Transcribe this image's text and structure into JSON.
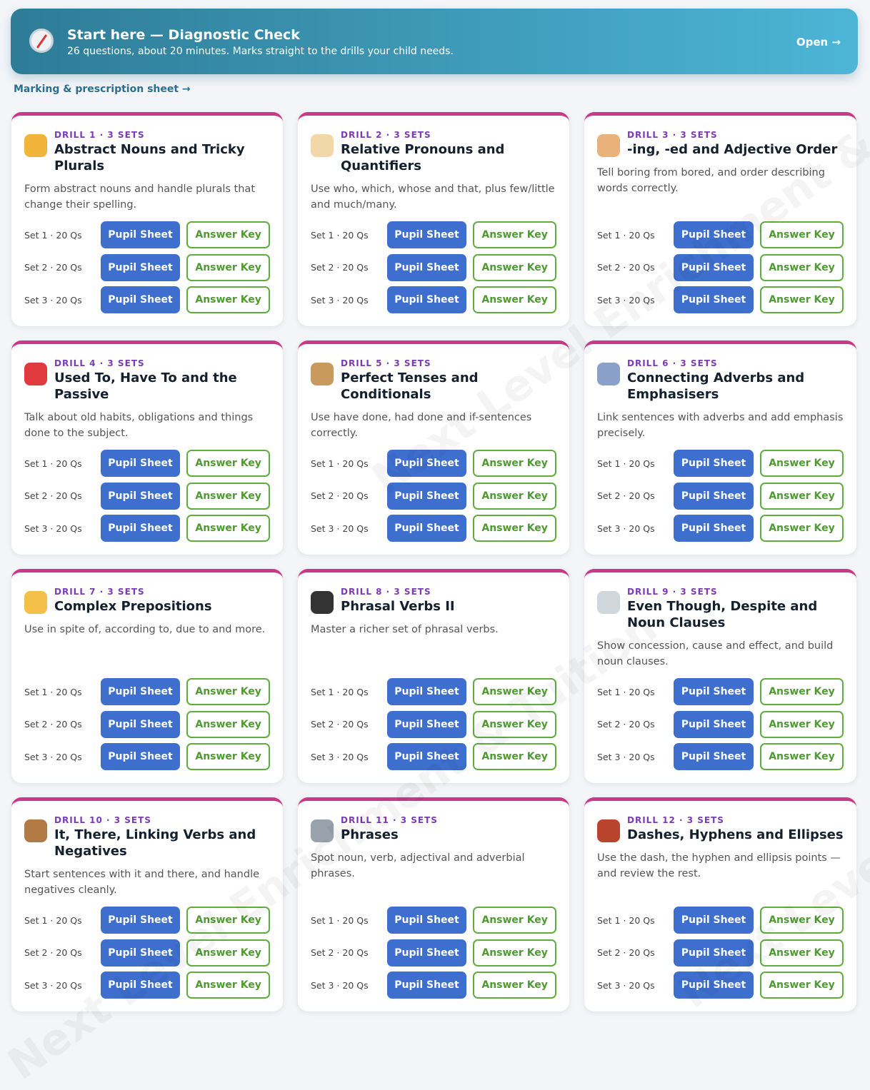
{
  "banner": {
    "title": "Start here — Diagnostic Check",
    "subtitle": "26 questions, about 20 minutes. Marks straight to the drills your child needs.",
    "action": "Open →"
  },
  "link": "Marking & prescription sheet →",
  "watermark": "Next Level Enrichment & Tuition",
  "drills": [
    {
      "label": "DRILL 1 · 3 SETS",
      "title": "Abstract Nouns and Tricky Plurals",
      "description": "Form abstract nouns and handle plurals that change their spelling.",
      "sets": [
        {
          "label": "Set 1 · 20 Qs",
          "pupil": "Pupil Sheet",
          "key": "Answer Key"
        },
        {
          "label": "Set 2 · 20 Qs",
          "pupil": "Pupil Sheet",
          "key": "Answer Key"
        },
        {
          "label": "Set 3 · 20 Qs",
          "pupil": "Pupil Sheet",
          "key": "Answer Key"
        }
      ]
    },
    {
      "label": "DRILL 2 · 3 SETS",
      "title": "Relative Pronouns and Quantifiers",
      "description": "Use who, which, whose and that, plus few/little and much/many.",
      "sets": [
        {
          "label": "Set 1 · 20 Qs",
          "pupil": "Pupil Sheet",
          "key": "Answer Key"
        },
        {
          "label": "Set 2 · 20 Qs",
          "pupil": "Pupil Sheet",
          "key": "Answer Key"
        },
        {
          "label": "Set 3 · 20 Qs",
          "pupil": "Pupil Sheet",
          "key": "Answer Key"
        }
      ]
    },
    {
      "label": "DRILL 3 · 3 SETS",
      "title": "-ing, -ed and Adjective Order",
      "description": "Tell boring from bored, and order describing words correctly.",
      "sets": [
        {
          "label": "Set 1 · 20 Qs",
          "pupil": "Pupil Sheet",
          "key": "Answer Key"
        },
        {
          "label": "Set 2 · 20 Qs",
          "pupil": "Pupil Sheet",
          "key": "Answer Key"
        },
        {
          "label": "Set 3 · 20 Qs",
          "pupil": "Pupil Sheet",
          "key": "Answer Key"
        }
      ]
    },
    {
      "label": "DRILL 4 · 3 SETS",
      "title": "Used To, Have To and the Passive",
      "description": "Talk about old habits, obligations and things done to the subject.",
      "sets": [
        {
          "label": "Set 1 · 20 Qs",
          "pupil": "Pupil Sheet",
          "key": "Answer Key"
        },
        {
          "label": "Set 2 · 20 Qs",
          "pupil": "Pupil Sheet",
          "key": "Answer Key"
        },
        {
          "label": "Set 3 · 20 Qs",
          "pupil": "Pupil Sheet",
          "key": "Answer Key"
        }
      ]
    },
    {
      "label": "DRILL 5 · 3 SETS",
      "title": "Perfect Tenses and Conditionals",
      "description": "Use have done, had done and if-sentences correctly.",
      "sets": [
        {
          "label": "Set 1 · 20 Qs",
          "pupil": "Pupil Sheet",
          "key": "Answer Key"
        },
        {
          "label": "Set 2 · 20 Qs",
          "pupil": "Pupil Sheet",
          "key": "Answer Key"
        },
        {
          "label": "Set 3 · 20 Qs",
          "pupil": "Pupil Sheet",
          "key": "Answer Key"
        }
      ]
    },
    {
      "label": "DRILL 6 · 3 SETS",
      "title": "Connecting Adverbs and Emphasisers",
      "description": "Link sentences with adverbs and add emphasis precisely.",
      "sets": [
        {
          "label": "Set 1 · 20 Qs",
          "pupil": "Pupil Sheet",
          "key": "Answer Key"
        },
        {
          "label": "Set 2 · 20 Qs",
          "pupil": "Pupil Sheet",
          "key": "Answer Key"
        },
        {
          "label": "Set 3 · 20 Qs",
          "pupil": "Pupil Sheet",
          "key": "Answer Key"
        }
      ]
    },
    {
      "label": "DRILL 7 · 3 SETS",
      "title": "Complex Prepositions",
      "description": "Use in spite of, according to, due to and more.",
      "sets": [
        {
          "label": "Set 1 · 20 Qs",
          "pupil": "Pupil Sheet",
          "key": "Answer Key"
        },
        {
          "label": "Set 2 · 20 Qs",
          "pupil": "Pupil Sheet",
          "key": "Answer Key"
        },
        {
          "label": "Set 3 · 20 Qs",
          "pupil": "Pupil Sheet",
          "key": "Answer Key"
        }
      ]
    },
    {
      "label": "DRILL 8 · 3 SETS",
      "title": "Phrasal Verbs II",
      "description": "Master a richer set of phrasal verbs.",
      "sets": [
        {
          "label": "Set 1 · 20 Qs",
          "pupil": "Pupil Sheet",
          "key": "Answer Key"
        },
        {
          "label": "Set 2 · 20 Qs",
          "pupil": "Pupil Sheet",
          "key": "Answer Key"
        },
        {
          "label": "Set 3 · 20 Qs",
          "pupil": "Pupil Sheet",
          "key": "Answer Key"
        }
      ]
    },
    {
      "label": "DRILL 9 · 3 SETS",
      "title": "Even Though, Despite and Noun Clauses",
      "description": "Show concession, cause and effect, and build noun clauses.",
      "sets": [
        {
          "label": "Set 1 · 20 Qs",
          "pupil": "Pupil Sheet",
          "key": "Answer Key"
        },
        {
          "label": "Set 2 · 20 Qs",
          "pupil": "Pupil Sheet",
          "key": "Answer Key"
        },
        {
          "label": "Set 3 · 20 Qs",
          "pupil": "Pupil Sheet",
          "key": "Answer Key"
        }
      ]
    },
    {
      "label": "DRILL 10 · 3 SETS",
      "title": "It, There, Linking Verbs and Negatives",
      "description": "Start sentences with it and there, and handle negatives cleanly.",
      "sets": [
        {
          "label": "Set 1 · 20 Qs",
          "pupil": "Pupil Sheet",
          "key": "Answer Key"
        },
        {
          "label": "Set 2 · 20 Qs",
          "pupil": "Pupil Sheet",
          "key": "Answer Key"
        },
        {
          "label": "Set 3 · 20 Qs",
          "pupil": "Pupil Sheet",
          "key": "Answer Key"
        }
      ]
    },
    {
      "label": "DRILL 11 · 3 SETS",
      "title": "Phrases",
      "description": "Spot noun, verb, adjectival and adverbial phrases.",
      "sets": [
        {
          "label": "Set 1 · 20 Qs",
          "pupil": "Pupil Sheet",
          "key": "Answer Key"
        },
        {
          "label": "Set 2 · 20 Qs",
          "pupil": "Pupil Sheet",
          "key": "Answer Key"
        },
        {
          "label": "Set 3 · 20 Qs",
          "pupil": "Pupil Sheet",
          "key": "Answer Key"
        }
      ]
    },
    {
      "label": "DRILL 12 · 3 SETS",
      "title": "Dashes, Hyphens and Ellipses",
      "description": "Use the dash, the hyphen and ellipsis points — and review the rest.",
      "sets": [
        {
          "label": "Set 1 · 20 Qs",
          "pupil": "Pupil Sheet",
          "key": "Answer Key"
        },
        {
          "label": "Set 2 · 20 Qs",
          "pupil": "Pupil Sheet",
          "key": "Answer Key"
        },
        {
          "label": "Set 3 · 20 Qs",
          "pupil": "Pupil Sheet",
          "key": "Answer Key"
        }
      ]
    }
  ]
}
